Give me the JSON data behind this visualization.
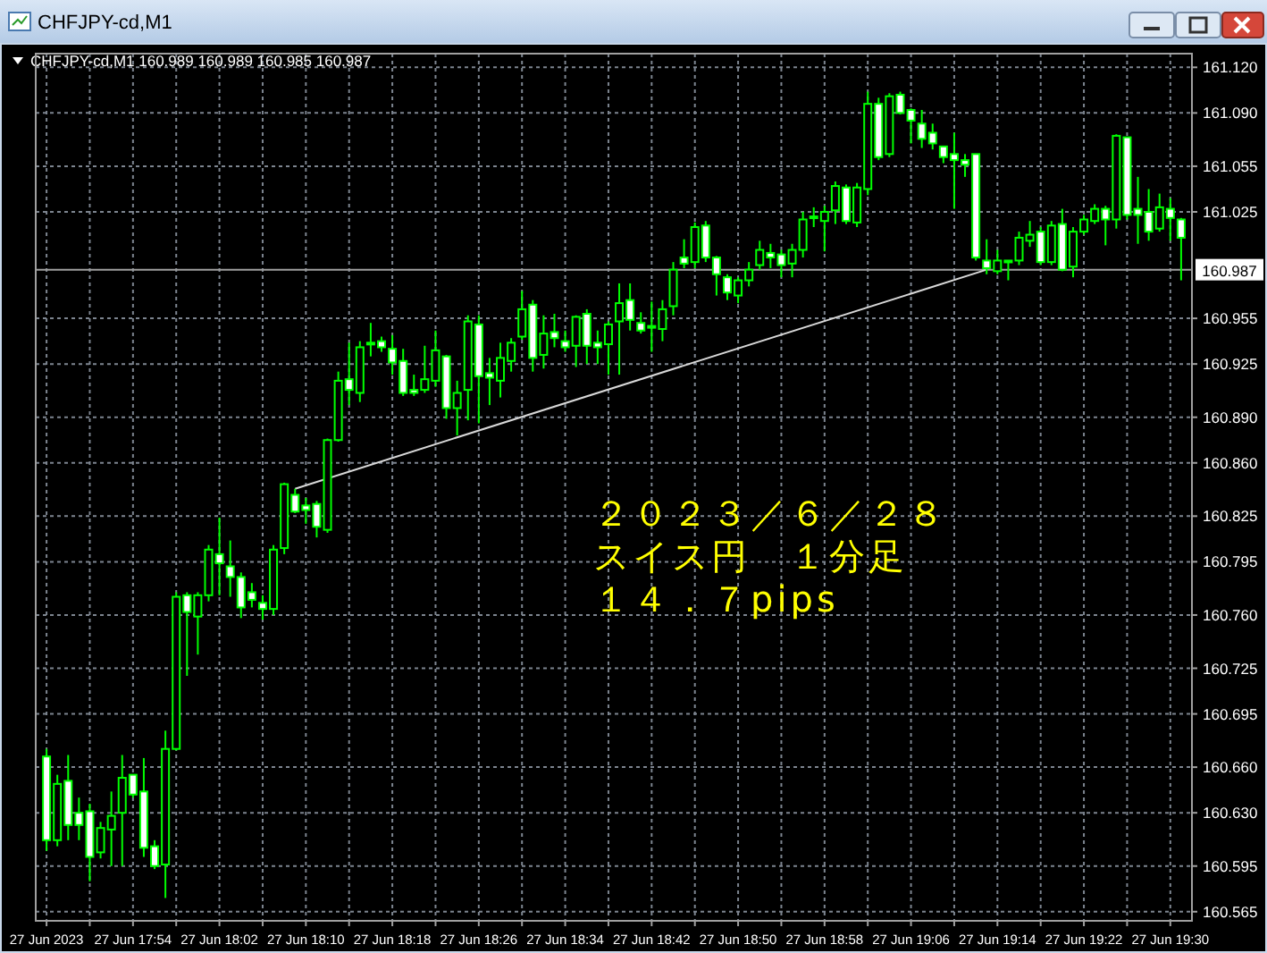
{
  "chart_data": {
    "type": "candlestick",
    "title": "CHFJPY-cd,M1",
    "subtitle": "CHFJPY-cd,M1  160.989 160.989 160.985 160.987",
    "color": "#00ff00",
    "x": [
      "2023-06-27T17:46",
      "2023-06-27T17:47",
      "2023-06-27T17:48",
      "2023-06-27T17:49",
      "2023-06-27T17:50",
      "2023-06-27T17:51",
      "2023-06-27T17:52",
      "2023-06-27T17:53",
      "2023-06-27T17:54",
      "2023-06-27T17:55",
      "2023-06-27T17:56",
      "2023-06-27T17:57",
      "2023-06-27T17:58",
      "2023-06-27T17:59",
      "2023-06-27T18:00",
      "2023-06-27T18:01",
      "2023-06-27T18:02",
      "2023-06-27T18:03",
      "2023-06-27T18:04",
      "2023-06-27T18:05",
      "2023-06-27T18:06",
      "2023-06-27T18:07",
      "2023-06-27T18:08",
      "2023-06-27T18:09",
      "2023-06-27T18:10",
      "2023-06-27T18:11",
      "2023-06-27T18:12",
      "2023-06-27T18:13",
      "2023-06-27T18:14",
      "2023-06-27T18:15",
      "2023-06-27T18:16",
      "2023-06-27T18:17",
      "2023-06-27T18:18",
      "2023-06-27T18:19",
      "2023-06-27T18:20",
      "2023-06-27T18:21",
      "2023-06-27T18:22",
      "2023-06-27T18:23",
      "2023-06-27T18:24",
      "2023-06-27T18:25",
      "2023-06-27T18:26",
      "2023-06-27T18:27",
      "2023-06-27T18:28",
      "2023-06-27T18:29",
      "2023-06-27T18:30",
      "2023-06-27T18:31",
      "2023-06-27T18:32",
      "2023-06-27T18:33",
      "2023-06-27T18:34",
      "2023-06-27T18:35",
      "2023-06-27T18:36",
      "2023-06-27T18:37",
      "2023-06-27T18:38",
      "2023-06-27T18:39",
      "2023-06-27T18:40",
      "2023-06-27T18:41",
      "2023-06-27T18:42",
      "2023-06-27T18:43",
      "2023-06-27T18:44",
      "2023-06-27T18:45",
      "2023-06-27T18:46",
      "2023-06-27T18:47",
      "2023-06-27T18:48",
      "2023-06-27T18:49",
      "2023-06-27T18:50",
      "2023-06-27T18:51",
      "2023-06-27T18:52",
      "2023-06-27T18:53",
      "2023-06-27T18:54",
      "2023-06-27T18:55",
      "2023-06-27T18:56",
      "2023-06-27T18:57",
      "2023-06-27T18:58",
      "2023-06-27T18:59",
      "2023-06-27T19:00",
      "2023-06-27T19:01",
      "2023-06-27T19:02",
      "2023-06-27T19:03",
      "2023-06-27T19:04",
      "2023-06-27T19:05",
      "2023-06-27T19:06",
      "2023-06-27T19:07",
      "2023-06-27T19:08",
      "2023-06-27T19:09",
      "2023-06-27T19:10",
      "2023-06-27T19:11",
      "2023-06-27T19:12",
      "2023-06-27T19:13",
      "2023-06-27T19:14",
      "2023-06-27T19:15",
      "2023-06-27T19:16",
      "2023-06-27T19:17",
      "2023-06-27T19:18",
      "2023-06-27T19:19",
      "2023-06-27T19:20",
      "2023-06-27T19:21",
      "2023-06-27T19:22",
      "2023-06-27T19:23",
      "2023-06-27T19:24",
      "2023-06-27T19:25",
      "2023-06-27T19:26",
      "2023-06-27T19:27",
      "2023-06-27T19:28",
      "2023-06-27T19:29",
      "2023-06-27T19:30",
      "2023-06-27T19:31"
    ],
    "ohlc": [
      [
        160.667,
        160.672,
        160.605,
        160.612
      ],
      [
        160.612,
        160.655,
        160.608,
        160.649
      ],
      [
        160.651,
        160.668,
        160.612,
        160.622
      ],
      [
        160.63,
        160.64,
        160.612,
        160.622
      ],
      [
        160.631,
        160.636,
        160.585,
        160.601
      ],
      [
        160.604,
        160.624,
        160.6,
        160.62
      ],
      [
        160.619,
        160.644,
        160.595,
        160.628
      ],
      [
        160.63,
        160.668,
        160.595,
        160.653
      ],
      [
        160.655,
        160.655,
        160.64,
        160.642
      ],
      [
        160.644,
        160.666,
        160.601,
        160.607
      ],
      [
        160.608,
        160.612,
        160.593,
        160.595
      ],
      [
        160.596,
        160.684,
        160.574,
        160.672
      ],
      [
        160.672,
        160.775,
        160.671,
        160.772
      ],
      [
        160.773,
        160.775,
        160.72,
        160.762
      ],
      [
        160.759,
        160.775,
        160.734,
        160.773
      ],
      [
        160.773,
        160.806,
        160.769,
        160.803
      ],
      [
        160.8,
        160.824,
        160.773,
        160.794
      ],
      [
        160.792,
        160.809,
        160.772,
        160.785
      ],
      [
        160.785,
        160.788,
        160.758,
        160.765
      ],
      [
        160.775,
        160.781,
        160.765,
        160.77
      ],
      [
        160.768,
        160.773,
        160.757,
        160.764
      ],
      [
        160.764,
        160.806,
        160.76,
        160.803
      ],
      [
        160.804,
        160.847,
        160.8,
        160.846
      ],
      [
        160.839,
        160.843,
        160.827,
        160.828
      ],
      [
        160.832,
        160.837,
        160.82,
        160.829
      ],
      [
        160.833,
        160.835,
        160.811,
        160.818
      ],
      [
        160.816,
        160.876,
        160.814,
        160.875
      ],
      [
        160.875,
        160.92,
        160.874,
        160.914
      ],
      [
        160.915,
        160.939,
        160.898,
        160.908
      ],
      [
        160.906,
        160.94,
        160.9,
        160.936
      ],
      [
        160.938,
        160.952,
        160.93,
        160.939
      ],
      [
        160.94,
        160.943,
        160.933,
        160.936
      ],
      [
        160.935,
        160.944,
        160.918,
        160.926
      ],
      [
        160.927,
        160.935,
        160.904,
        160.906
      ],
      [
        160.908,
        160.918,
        160.904,
        160.906
      ],
      [
        160.908,
        160.937,
        160.906,
        160.915
      ],
      [
        160.914,
        160.947,
        160.91,
        160.934
      ],
      [
        160.93,
        160.931,
        160.889,
        160.896
      ],
      [
        160.896,
        160.914,
        160.878,
        160.906
      ],
      [
        160.908,
        160.957,
        160.888,
        160.953
      ],
      [
        160.951,
        160.957,
        160.886,
        160.917
      ],
      [
        160.919,
        160.929,
        160.898,
        160.916
      ],
      [
        160.914,
        160.939,
        160.903,
        160.929
      ],
      [
        160.927,
        160.942,
        160.92,
        160.939
      ],
      [
        160.943,
        160.973,
        160.941,
        160.961
      ],
      [
        160.964,
        160.967,
        160.92,
        160.929
      ],
      [
        160.931,
        160.957,
        160.922,
        160.945
      ],
      [
        160.946,
        160.958,
        160.936,
        160.942
      ],
      [
        160.94,
        160.947,
        160.933,
        160.936
      ],
      [
        160.937,
        160.957,
        160.923,
        160.956
      ],
      [
        160.958,
        160.961,
        160.925,
        160.937
      ],
      [
        160.939,
        160.947,
        160.925,
        160.936
      ],
      [
        160.938,
        160.953,
        160.918,
        160.951
      ],
      [
        160.953,
        160.978,
        160.918,
        160.965
      ],
      [
        160.967,
        160.978,
        160.947,
        160.954
      ],
      [
        160.952,
        160.959,
        160.945,
        160.947
      ],
      [
        160.95,
        160.966,
        160.933,
        160.949
      ],
      [
        160.948,
        160.967,
        160.94,
        160.961
      ],
      [
        160.963,
        160.992,
        160.957,
        160.987
      ],
      [
        160.995,
        161.007,
        160.988,
        160.991
      ],
      [
        160.992,
        161.018,
        160.988,
        161.015
      ],
      [
        161.016,
        161.019,
        160.992,
        160.995
      ],
      [
        160.995,
        160.996,
        160.97,
        160.984
      ],
      [
        160.982,
        160.984,
        160.967,
        160.972
      ],
      [
        160.97,
        160.982,
        160.965,
        160.98
      ],
      [
        160.98,
        160.992,
        160.976,
        160.987
      ],
      [
        160.99,
        161.006,
        160.987,
        161.0
      ],
      [
        160.998,
        161.004,
        160.988,
        160.995
      ],
      [
        160.997,
        161.0,
        160.982,
        160.99
      ],
      [
        160.991,
        161.004,
        160.982,
        161.0
      ],
      [
        161.0,
        161.025,
        160.995,
        161.02
      ],
      [
        161.021,
        161.028,
        161.015,
        161.022
      ],
      [
        161.019,
        161.029,
        160.999,
        161.025
      ],
      [
        161.026,
        161.045,
        161.017,
        161.042
      ],
      [
        161.041,
        161.043,
        161.017,
        161.019
      ],
      [
        161.018,
        161.044,
        161.015,
        161.041
      ],
      [
        161.04,
        161.104,
        161.036,
        161.096
      ],
      [
        161.096,
        161.1,
        161.059,
        161.061
      ],
      [
        161.063,
        161.103,
        161.061,
        161.101
      ],
      [
        161.102,
        161.104,
        161.089,
        161.09
      ],
      [
        161.092,
        161.093,
        161.07,
        161.085
      ],
      [
        161.083,
        161.092,
        161.067,
        161.073
      ],
      [
        161.077,
        161.083,
        161.066,
        161.07
      ],
      [
        161.068,
        161.068,
        161.057,
        161.061
      ],
      [
        161.063,
        161.077,
        161.027,
        161.059
      ],
      [
        161.059,
        161.063,
        161.048,
        161.056
      ],
      [
        161.063,
        161.063,
        160.993,
        160.995
      ],
      [
        160.993,
        161.007,
        160.984,
        160.988
      ],
      [
        160.986,
        161.0,
        160.984,
        160.993
      ],
      [
        160.992,
        160.993,
        160.98,
        160.993
      ],
      [
        160.993,
        161.012,
        160.99,
        161.008
      ],
      [
        161.006,
        161.019,
        161.002,
        161.01
      ],
      [
        161.012,
        161.015,
        160.99,
        160.992
      ],
      [
        160.992,
        161.019,
        160.99,
        161.016
      ],
      [
        161.017,
        161.027,
        160.986,
        160.987
      ],
      [
        160.989,
        161.015,
        160.982,
        161.012
      ],
      [
        161.012,
        161.023,
        161.01,
        161.02
      ],
      [
        161.019,
        161.03,
        161.017,
        161.027
      ],
      [
        161.027,
        161.029,
        161.003,
        161.02
      ],
      [
        161.02,
        161.076,
        161.014,
        161.075
      ],
      [
        161.074,
        161.074,
        161.02,
        161.023
      ],
      [
        161.027,
        161.048,
        161.004,
        161.023
      ],
      [
        161.025,
        161.04,
        161.006,
        161.012
      ],
      [
        161.014,
        161.037,
        161.012,
        161.028
      ],
      [
        161.027,
        161.034,
        161.006,
        161.021
      ],
      [
        161.02,
        161.021,
        160.98,
        161.008
      ]
    ],
    "series": [
      {
        "type": "line",
        "color": "#d8d8d8",
        "x": [
          "2023-06-27T18:09",
          "2023-06-27T19:13"
        ],
        "values": [
          160.843,
          160.987
        ]
      }
    ],
    "xlim": [
      "2023-06-27T17:45",
      "2023-06-27T19:32"
    ],
    "ylim": [
      160.559,
      161.129
    ],
    "xticks": [
      {
        "value": "2023-06-27T17:46",
        "label": "27 Jun 2023"
      },
      {
        "value": "2023-06-27T17:50",
        "label": null
      },
      {
        "value": "2023-06-27T17:54",
        "label": "27 Jun 17:54"
      },
      {
        "value": "2023-06-27T17:58",
        "label": null
      },
      {
        "value": "2023-06-27T18:02",
        "label": "27 Jun 18:02"
      },
      {
        "value": "2023-06-27T18:06",
        "label": null
      },
      {
        "value": "2023-06-27T18:10",
        "label": "27 Jun 18:10"
      },
      {
        "value": "2023-06-27T18:14",
        "label": null
      },
      {
        "value": "2023-06-27T18:18",
        "label": "27 Jun 18:18"
      },
      {
        "value": "2023-06-27T18:22",
        "label": null
      },
      {
        "value": "2023-06-27T18:26",
        "label": "27 Jun 18:26"
      },
      {
        "value": "2023-06-27T18:30",
        "label": null
      },
      {
        "value": "2023-06-27T18:34",
        "label": "27 Jun 18:34"
      },
      {
        "value": "2023-06-27T18:38",
        "label": null
      },
      {
        "value": "2023-06-27T18:42",
        "label": "27 Jun 18:42"
      },
      {
        "value": "2023-06-27T18:46",
        "label": null
      },
      {
        "value": "2023-06-27T18:50",
        "label": "27 Jun 18:50"
      },
      {
        "value": "2023-06-27T18:54",
        "label": null
      },
      {
        "value": "2023-06-27T18:58",
        "label": "27 Jun 18:58"
      },
      {
        "value": "2023-06-27T19:02",
        "label": null
      },
      {
        "value": "2023-06-27T19:06",
        "label": "27 Jun 19:06"
      },
      {
        "value": "2023-06-27T19:10",
        "label": null
      },
      {
        "value": "2023-06-27T19:14",
        "label": "27 Jun 19:14"
      },
      {
        "value": "2023-06-27T19:18",
        "label": null
      },
      {
        "value": "2023-06-27T19:22",
        "label": "27 Jun 19:22"
      },
      {
        "value": "2023-06-27T19:26",
        "label": null
      },
      {
        "value": "2023-06-27T19:30",
        "label": "27 Jun 19:30"
      }
    ],
    "yticks": [
      {
        "value": 161.12,
        "label": "161.120"
      },
      {
        "value": 161.09,
        "label": "161.090"
      },
      {
        "value": 161.055,
        "label": "161.055"
      },
      {
        "value": 161.025,
        "label": "161.025"
      },
      {
        "value": 160.955,
        "label": "160.955"
      },
      {
        "value": 160.925,
        "label": "160.925"
      },
      {
        "value": 160.89,
        "label": "160.890"
      },
      {
        "value": 160.86,
        "label": "160.860"
      },
      {
        "value": 160.825,
        "label": "160.825"
      },
      {
        "value": 160.795,
        "label": "160.795"
      },
      {
        "value": 160.76,
        "label": "160.760"
      },
      {
        "value": 160.725,
        "label": "160.725"
      },
      {
        "value": 160.695,
        "label": "160.695"
      },
      {
        "value": 160.66,
        "label": "160.660"
      },
      {
        "value": 160.63,
        "label": "160.630"
      },
      {
        "value": 160.595,
        "label": "160.595"
      },
      {
        "value": 160.565,
        "label": "160.565"
      }
    ],
    "grid": true,
    "ref_lines": [
      {
        "axis": "y",
        "value": 160.987,
        "label": "160.987",
        "color": "#a0a0a0"
      }
    ],
    "annotations": [
      "２０２３／６／２８",
      "スイス円　１分足",
      "１４．７pips"
    ]
  }
}
